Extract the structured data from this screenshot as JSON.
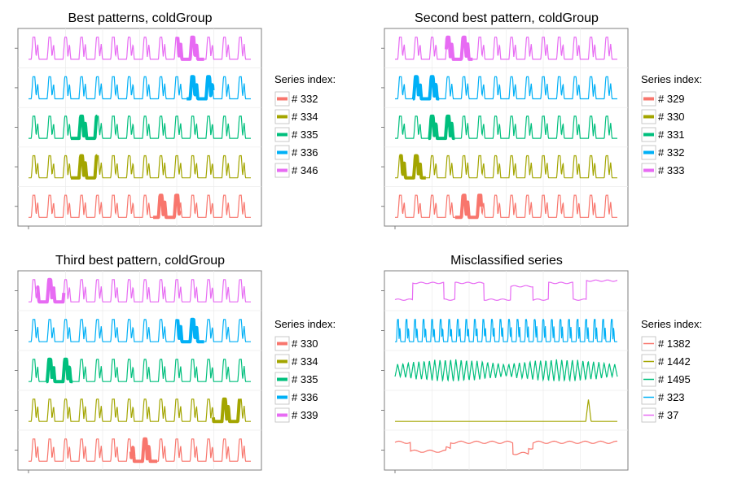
{
  "chart_data": [
    {
      "type": "line",
      "title": "Best patterns, coldGroup",
      "legend": {
        "title": "Series index:",
        "position": "right"
      },
      "colors": [
        "#F8766D",
        "#A3A500",
        "#00BF7D",
        "#00B0F6",
        "#E76BF3"
      ],
      "series": [
        {
          "name": "# 332",
          "kind": "periodic",
          "period": 14,
          "highlight": [
            0.56,
            0.68
          ]
        },
        {
          "name": "# 334",
          "kind": "periodic",
          "period": 14,
          "highlight": [
            0.19,
            0.31
          ]
        },
        {
          "name": "# 335",
          "kind": "periodic",
          "period": 14,
          "highlight": [
            0.19,
            0.31
          ]
        },
        {
          "name": "# 336",
          "kind": "periodic",
          "period": 14,
          "highlight": [
            0.71,
            0.83
          ]
        },
        {
          "name": "# 346",
          "kind": "periodic",
          "period": 14,
          "highlight": [
            0.67,
            0.79
          ]
        }
      ]
    },
    {
      "type": "line",
      "title": "Second best pattern, coldGroup",
      "legend": {
        "title": "Series index:",
        "position": "right"
      },
      "colors": [
        "#F8766D",
        "#A3A500",
        "#00BF7D",
        "#00B0F6",
        "#E76BF3"
      ],
      "series": [
        {
          "name": "# 329",
          "kind": "periodic",
          "period": 14,
          "highlight": [
            0.27,
            0.39
          ]
        },
        {
          "name": "# 330",
          "kind": "periodic",
          "period": 14,
          "highlight": [
            0.02,
            0.14
          ]
        },
        {
          "name": "# 331",
          "kind": "periodic",
          "period": 14,
          "highlight": [
            0.15,
            0.27
          ]
        },
        {
          "name": "# 332",
          "kind": "periodic",
          "period": 14,
          "highlight": [
            0.08,
            0.2
          ]
        },
        {
          "name": "# 333",
          "kind": "periodic",
          "period": 14,
          "highlight": [
            0.23,
            0.35
          ]
        }
      ]
    },
    {
      "type": "line",
      "title": "Third best pattern, coldGroup",
      "legend": {
        "title": "Series index:",
        "position": "right"
      },
      "colors": [
        "#F8766D",
        "#A3A500",
        "#00BF7D",
        "#00B0F6",
        "#E76BF3"
      ],
      "series": [
        {
          "name": "# 330",
          "kind": "periodic",
          "period": 14,
          "highlight": [
            0.46,
            0.58
          ]
        },
        {
          "name": "# 334",
          "kind": "periodic",
          "period": 14,
          "highlight": [
            0.83,
            0.95
          ]
        },
        {
          "name": "# 335",
          "kind": "periodic",
          "period": 14,
          "highlight": [
            0.08,
            0.2
          ]
        },
        {
          "name": "# 336",
          "kind": "periodic",
          "period": 14,
          "highlight": [
            0.67,
            0.79
          ]
        },
        {
          "name": "# 339",
          "kind": "periodic",
          "period": 14,
          "highlight": [
            0.04,
            0.16
          ]
        }
      ]
    },
    {
      "type": "line",
      "title": "Misclassified series",
      "legend": {
        "title": "Series index:",
        "position": "right"
      },
      "colors": [
        "#F8766D",
        "#A3A500",
        "#00BF7D",
        "#00B0F6",
        "#E76BF3"
      ],
      "series": [
        {
          "name": "# 1382",
          "kind": "step"
        },
        {
          "name": "# 1442",
          "kind": "spike",
          "spike_at": 0.87
        },
        {
          "name": "# 1495",
          "kind": "zigzag",
          "period": 42
        },
        {
          "name": "# 323",
          "kind": "periodic",
          "period": 26
        },
        {
          "name": "# 37",
          "kind": "steps2"
        }
      ]
    }
  ]
}
